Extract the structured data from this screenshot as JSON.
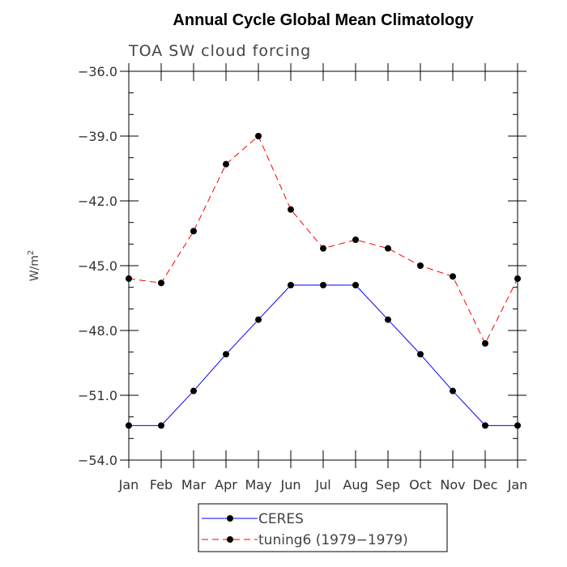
{
  "chart_data": {
    "type": "line",
    "title": "Annual Cycle Global Mean Climatology",
    "subtitle": "TOA SW cloud forcing",
    "ylabel": "W/m",
    "ylabel_superscript": "2",
    "ylim": [
      -54.0,
      -36.0
    ],
    "yticks": [
      "-36.0",
      "-39.0",
      "-42.0",
      "-45.0",
      "-48.0",
      "-51.0",
      "-54.0"
    ],
    "yticks_values": [
      -36.0,
      -39.0,
      -42.0,
      -45.0,
      -48.0,
      -51.0,
      -54.0
    ],
    "categories": [
      "Jan",
      "Feb",
      "Mar",
      "Apr",
      "May",
      "Jun",
      "Jul",
      "Aug",
      "Sep",
      "Oct",
      "Nov",
      "Dec",
      "Jan"
    ],
    "legend_position": "bottom-center",
    "series": [
      {
        "name": "CERES",
        "color": "#0000ff",
        "dash": "solid",
        "values": [
          -52.4,
          -52.4,
          -50.8,
          -49.1,
          -47.5,
          -45.9,
          -45.9,
          -45.9,
          -47.5,
          -49.1,
          -50.8,
          -52.4,
          -52.4
        ]
      },
      {
        "name": "tuning6 (1979-1979)",
        "color": "#ff0000",
        "dash": "dashed",
        "values": [
          -45.6,
          -45.8,
          -43.4,
          -40.3,
          -39.0,
          -42.4,
          -44.2,
          -43.8,
          -44.2,
          -45.0,
          -45.5,
          -48.6,
          -45.6
        ]
      }
    ]
  }
}
